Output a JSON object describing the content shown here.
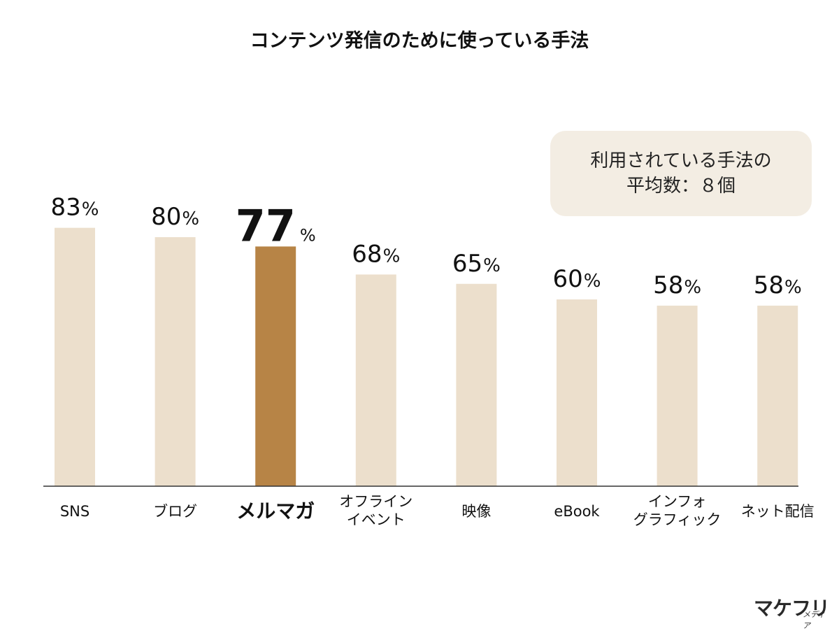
{
  "chart_data": {
    "type": "bar",
    "title": "コンテンツ発信のために使っている手法",
    "categories": [
      "SNS",
      "ブログ",
      "メルマガ",
      "オフライン\nイベント",
      "映像",
      "eBook",
      "インフォ\nグラフィック",
      "ネット配信"
    ],
    "values": [
      83,
      80,
      77,
      68,
      65,
      60,
      58,
      58
    ],
    "value_unit": "%",
    "highlight": "メルマガ",
    "ylim": [
      0,
      100
    ],
    "grid": false,
    "xlabel": "",
    "ylabel": ""
  },
  "annotation": {
    "line1": "利用されている手法の",
    "line2": "平均数：８個"
  },
  "colors": {
    "bar": "#ecdfcc",
    "highlight_bar": "#b78446",
    "axis": "#333333",
    "note_bg": "#f3ede3"
  },
  "logo": {
    "main": "マケフリ",
    "sub": "メディア"
  }
}
